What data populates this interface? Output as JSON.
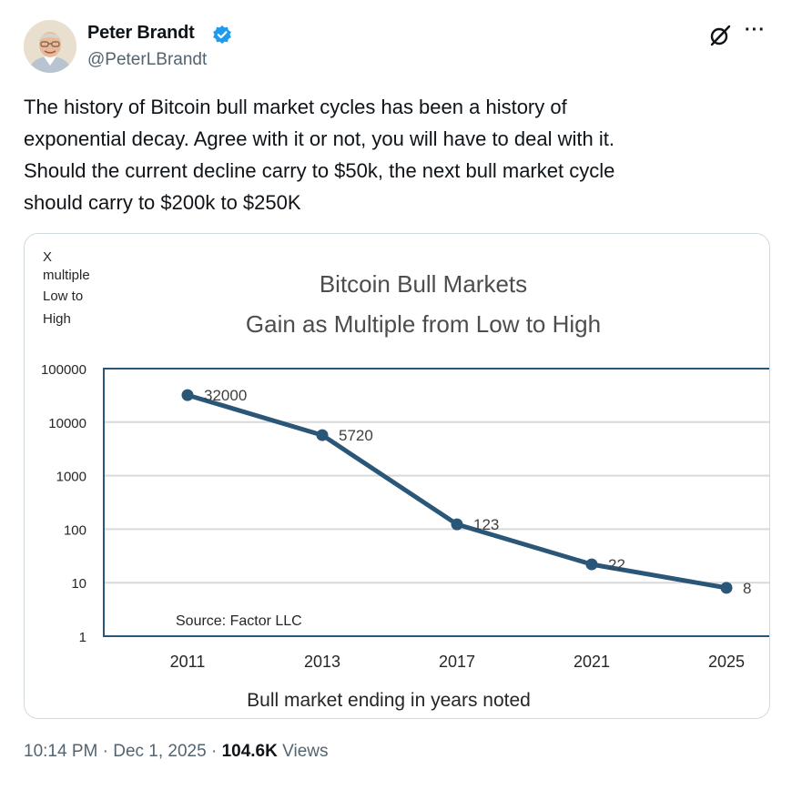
{
  "author": {
    "name": "Peter Brandt",
    "handle": "@PeterLBrandt",
    "verified": true,
    "avatar_icon": "avatar-portrait"
  },
  "actions": {
    "grok_icon": "grok-icon",
    "more_label": "···"
  },
  "tweet": {
    "lines": [
      "The history of Bitcoin bull market cycles has been a history of",
      "exponential decay. Agree with it or not, you will have to deal with it.",
      "Should the current decline carry to $50k, the next bull market cycle",
      "should carry to $200k to $250K"
    ]
  },
  "meta": {
    "time": "10:14 PM",
    "separator": "·",
    "date": "Dec 1, 2025",
    "views_count": "104.6K",
    "views_label": "Views"
  },
  "colors": {
    "line": "#2a5677",
    "frame": "#2a5677",
    "grid": "#d9d9d9",
    "text": "#404040",
    "verified": "#1d9bf0"
  },
  "chart_data": {
    "type": "line",
    "title": "Bitcoin Bull Markets",
    "subtitle": "Gain as Multiple from Low to High",
    "ylabel_lines": [
      "X",
      "multiple",
      "Low to",
      "High"
    ],
    "xlabel": "Bull market ending in years noted",
    "yscale": "log",
    "ylim": [
      1,
      100000
    ],
    "yticks": [
      "100000",
      "10000",
      "1000",
      "100",
      "10",
      "1"
    ],
    "categories": [
      "2011",
      "2013",
      "2017",
      "2021",
      "2025"
    ],
    "series": [
      {
        "name": "Gain multiple",
        "values": [
          32000,
          5720,
          123,
          22,
          8
        ],
        "labels": [
          "32000",
          "5720",
          "123",
          "22",
          "8"
        ]
      }
    ],
    "annotation": "Source: Factor LLC",
    "grid": true
  }
}
